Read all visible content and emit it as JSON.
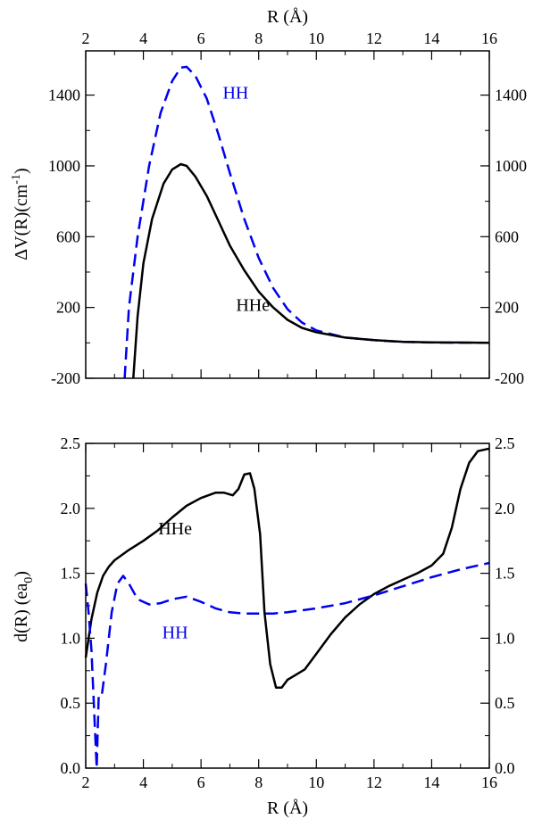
{
  "chart_data": [
    {
      "type": "line",
      "xlabel": "R (Å)",
      "ylabel_main": "ΔV(R)(cm",
      "ylabel_sup": "-1",
      "ylabel_close": ")",
      "xlim": [
        2,
        16
      ],
      "ylim": [
        -200,
        1650
      ],
      "xticks": [
        2,
        4,
        6,
        8,
        10,
        12,
        14,
        16
      ],
      "yticks": [
        -200,
        200,
        600,
        1000,
        1400
      ],
      "series": [
        {
          "name": "HH",
          "color": "#0000ee",
          "dash": "dashed",
          "points": [
            [
              3.35,
              -200
            ],
            [
              3.5,
              200
            ],
            [
              3.8,
              600
            ],
            [
              4.2,
              1000
            ],
            [
              4.6,
              1300
            ],
            [
              5.0,
              1480
            ],
            [
              5.3,
              1555
            ],
            [
              5.5,
              1560
            ],
            [
              5.8,
              1510
            ],
            [
              6.2,
              1380
            ],
            [
              6.6,
              1180
            ],
            [
              7.0,
              960
            ],
            [
              7.5,
              700
            ],
            [
              8.0,
              480
            ],
            [
              8.5,
              310
            ],
            [
              9.0,
              190
            ],
            [
              9.5,
              115
            ],
            [
              10.0,
              70
            ],
            [
              11.0,
              30
            ],
            [
              12.0,
              15
            ],
            [
              13.0,
              5
            ],
            [
              14.0,
              2
            ],
            [
              16.0,
              0
            ]
          ]
        },
        {
          "name": "HHe",
          "color": "#000000",
          "dash": "solid",
          "points": [
            [
              3.65,
              -200
            ],
            [
              3.8,
              150
            ],
            [
              4.0,
              450
            ],
            [
              4.3,
              700
            ],
            [
              4.7,
              900
            ],
            [
              5.0,
              980
            ],
            [
              5.3,
              1010
            ],
            [
              5.5,
              1000
            ],
            [
              5.8,
              940
            ],
            [
              6.2,
              830
            ],
            [
              6.6,
              690
            ],
            [
              7.0,
              550
            ],
            [
              7.5,
              410
            ],
            [
              8.0,
              290
            ],
            [
              8.5,
              200
            ],
            [
              9.0,
              130
            ],
            [
              9.5,
              85
            ],
            [
              10.0,
              60
            ],
            [
              11.0,
              30
            ],
            [
              12.0,
              15
            ],
            [
              13.0,
              6
            ],
            [
              14.0,
              3
            ],
            [
              16.0,
              0
            ]
          ]
        }
      ],
      "annotations": [
        {
          "text": "HH",
          "x": 7.2,
          "y": 1380,
          "color": "#0000ee"
        },
        {
          "text": "HHe",
          "x": 7.8,
          "y": 180,
          "color": "#000000"
        }
      ]
    },
    {
      "type": "line",
      "xlabel": "R (Å)",
      "ylabel_main": "d(R) (ea",
      "ylabel_sub": "0",
      "ylabel_close": ")",
      "xlim": [
        2,
        16
      ],
      "ylim": [
        0,
        2.5
      ],
      "xticks": [
        2,
        4,
        6,
        8,
        10,
        12,
        14,
        16
      ],
      "yticks": [
        0.0,
        0.5,
        1.0,
        1.5,
        2.0,
        2.5
      ],
      "ytick_labels": [
        "0.0",
        "0.5",
        "1.0",
        "1.5",
        "2.0",
        "2.5"
      ],
      "series": [
        {
          "name": "HHe",
          "color": "#000000",
          "dash": "solid",
          "points": [
            [
              2.0,
              0.85
            ],
            [
              2.2,
              1.15
            ],
            [
              2.4,
              1.35
            ],
            [
              2.6,
              1.48
            ],
            [
              2.8,
              1.55
            ],
            [
              3.0,
              1.6
            ],
            [
              3.5,
              1.68
            ],
            [
              4.0,
              1.75
            ],
            [
              4.5,
              1.83
            ],
            [
              5.0,
              1.93
            ],
            [
              5.5,
              2.02
            ],
            [
              6.0,
              2.08
            ],
            [
              6.5,
              2.12
            ],
            [
              6.8,
              2.12
            ],
            [
              7.1,
              2.1
            ],
            [
              7.3,
              2.15
            ],
            [
              7.5,
              2.26
            ],
            [
              7.7,
              2.27
            ],
            [
              7.85,
              2.15
            ],
            [
              8.05,
              1.8
            ],
            [
              8.2,
              1.2
            ],
            [
              8.4,
              0.8
            ],
            [
              8.6,
              0.62
            ],
            [
              8.8,
              0.62
            ],
            [
              9.0,
              0.68
            ],
            [
              9.3,
              0.72
            ],
            [
              9.6,
              0.76
            ],
            [
              10.0,
              0.88
            ],
            [
              10.5,
              1.03
            ],
            [
              11.0,
              1.16
            ],
            [
              11.5,
              1.26
            ],
            [
              12.0,
              1.34
            ],
            [
              12.5,
              1.4
            ],
            [
              13.0,
              1.45
            ],
            [
              13.5,
              1.5
            ],
            [
              14.0,
              1.56
            ],
            [
              14.4,
              1.65
            ],
            [
              14.7,
              1.85
            ],
            [
              15.0,
              2.15
            ],
            [
              15.3,
              2.35
            ],
            [
              15.6,
              2.44
            ],
            [
              16.0,
              2.46
            ]
          ]
        },
        {
          "name": "HH",
          "color": "#0000ee",
          "dash": "dashed",
          "points": [
            [
              2.0,
              1.42
            ],
            [
              2.1,
              1.2
            ],
            [
              2.2,
              0.9
            ],
            [
              2.3,
              0.4
            ],
            [
              2.38,
              0.0
            ],
            [
              2.45,
              0.55
            ],
            [
              2.55,
              0.55
            ],
            [
              2.7,
              0.8
            ],
            [
              2.9,
              1.2
            ],
            [
              3.1,
              1.42
            ],
            [
              3.3,
              1.48
            ],
            [
              3.5,
              1.42
            ],
            [
              3.8,
              1.3
            ],
            [
              4.2,
              1.26
            ],
            [
              4.6,
              1.27
            ],
            [
              5.0,
              1.3
            ],
            [
              5.5,
              1.32
            ],
            [
              6.0,
              1.28
            ],
            [
              6.5,
              1.23
            ],
            [
              7.0,
              1.2
            ],
            [
              7.5,
              1.19
            ],
            [
              8.0,
              1.19
            ],
            [
              8.5,
              1.19
            ],
            [
              9.0,
              1.2
            ],
            [
              10.0,
              1.23
            ],
            [
              11.0,
              1.27
            ],
            [
              12.0,
              1.33
            ],
            [
              13.0,
              1.4
            ],
            [
              14.0,
              1.47
            ],
            [
              15.0,
              1.53
            ],
            [
              16.0,
              1.58
            ]
          ]
        }
      ],
      "annotations": [
        {
          "text": "HHe",
          "x": 5.1,
          "y": 1.8,
          "color": "#000000"
        },
        {
          "text": "HH",
          "x": 5.1,
          "y": 1.0,
          "color": "#0000ee"
        }
      ]
    }
  ]
}
